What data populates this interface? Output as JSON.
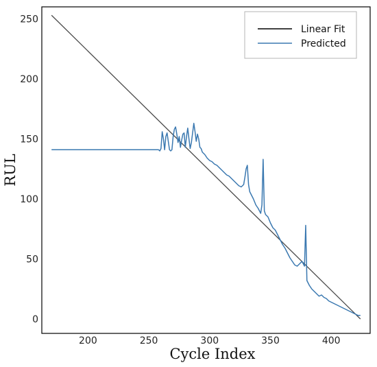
{
  "chart_data": {
    "type": "line",
    "xlabel": "Cycle Index",
    "ylabel": "RUL",
    "xlim": [
      162,
      432
    ],
    "ylim": [
      -12,
      260
    ],
    "x_ticks": [
      200,
      250,
      300,
      350,
      400
    ],
    "y_ticks": [
      0,
      50,
      100,
      150,
      200,
      250
    ],
    "x_tick_labels": [
      "200",
      "250",
      "300",
      "350",
      "400"
    ],
    "y_tick_labels": [
      "0",
      "50",
      "100",
      "150",
      "200",
      "250"
    ],
    "grid": false,
    "legend": {
      "position": "top-right",
      "entries": [
        {
          "label": "Linear Fit",
          "color": "#000000"
        },
        {
          "label": "Predicted",
          "color": "#3a78b0"
        }
      ]
    },
    "series": [
      {
        "name": "Linear Fit",
        "color": "#4a4a4a",
        "x": [
          170,
          424
        ],
        "y": [
          253,
          0
        ]
      },
      {
        "name": "Predicted",
        "color": "#3a78b0",
        "x": [
          170,
          200,
          230,
          258,
          259,
          260,
          261,
          262,
          263,
          264,
          265,
          266,
          267,
          268,
          269,
          270,
          271,
          272,
          273,
          274,
          275,
          276,
          277,
          278,
          279,
          280,
          281,
          282,
          283,
          284,
          285,
          286,
          287,
          288,
          289,
          290,
          291,
          292,
          293,
          294,
          296,
          298,
          300,
          302,
          304,
          306,
          308,
          310,
          312,
          314,
          316,
          318,
          320,
          322,
          324,
          326,
          328,
          329,
          330,
          331,
          332,
          333,
          334,
          336,
          338,
          340,
          341,
          342,
          343,
          344,
          345,
          346,
          347,
          348,
          350,
          352,
          354,
          356,
          358,
          360,
          362,
          364,
          366,
          368,
          370,
          372,
          374,
          376,
          378,
          379,
          380,
          381,
          382,
          384,
          386,
          388,
          390,
          392,
          394,
          396,
          398,
          400,
          402,
          404,
          406,
          408,
          410,
          412,
          414,
          416,
          418,
          420,
          422,
          424
        ],
        "y": [
          141,
          141,
          141,
          141,
          140,
          142,
          156,
          150,
          141,
          152,
          155,
          148,
          141,
          140,
          141,
          152,
          158,
          160,
          154,
          147,
          152,
          143,
          149,
          154,
          155,
          143,
          152,
          159,
          150,
          142,
          147,
          155,
          163,
          156,
          148,
          154,
          150,
          143,
          142,
          139,
          137,
          134,
          132,
          131,
          129,
          128,
          126,
          124,
          122,
          120,
          119,
          117,
          115,
          113,
          111,
          110,
          112,
          118,
          125,
          128,
          112,
          106,
          104,
          100,
          95,
          92,
          90,
          88,
          95,
          133,
          90,
          87,
          86,
          85,
          80,
          76,
          74,
          70,
          66,
          62,
          59,
          55,
          51,
          48,
          45,
          44,
          46,
          48,
          44,
          78,
          32,
          30,
          28,
          25,
          23,
          21,
          19,
          20,
          18,
          17,
          15,
          14,
          13,
          12,
          11,
          10,
          9,
          8,
          7,
          6,
          5,
          4,
          3,
          3
        ]
      }
    ]
  }
}
